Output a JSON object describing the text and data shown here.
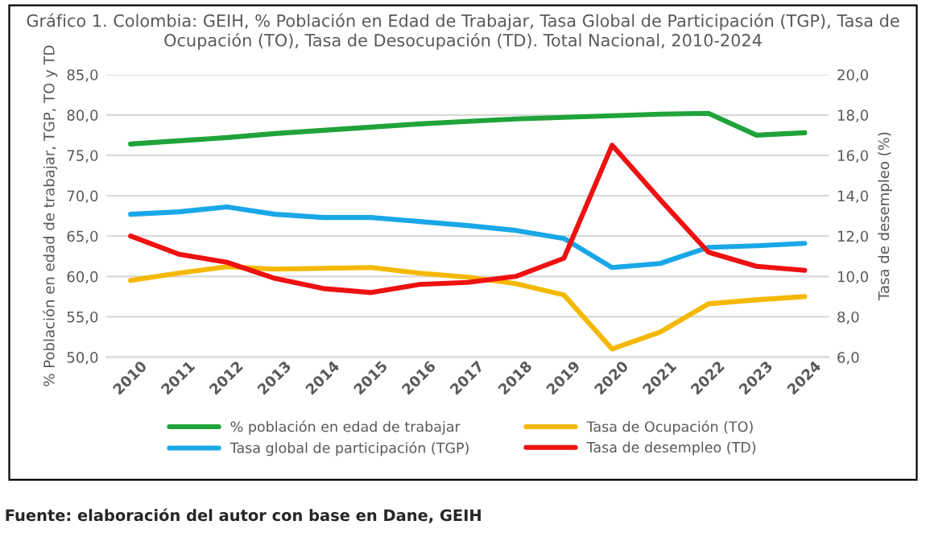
{
  "chart_data": {
    "type": "line",
    "title": "Gráfico 1. Colombia: GEIH, % Población en Edad de Trabajar, Tasa Global de Participación (TGP), Tasa de Ocupación (TO), Tasa de Desocupación (TD). Total Nacional, 2010-2024",
    "ylabel": "% Población en edad de trabajar, TGP, TO y TD",
    "y2label": "Tasa de desempleo (%)",
    "categories": [
      "2010",
      "2011",
      "2012",
      "2013",
      "2014",
      "2015",
      "2016",
      "2017",
      "2018",
      "2019",
      "2020",
      "2021",
      "2022",
      "2023",
      "2024"
    ],
    "series": [
      {
        "name": "% población en edad de trabajar",
        "color": "#1fa33a",
        "values": [
          76.4,
          76.8,
          77.2,
          77.7,
          78.1,
          78.5,
          78.9,
          79.2,
          79.5,
          79.7,
          79.9,
          80.1,
          80.2,
          77.5,
          77.8
        ]
      },
      {
        "name": "Tasa global de participación (TGP)",
        "color": "#1aa7e8",
        "values": [
          67.7,
          68.0,
          68.6,
          67.7,
          67.3,
          67.3,
          66.8,
          66.3,
          65.7,
          64.7,
          61.1,
          61.6,
          63.6,
          63.8,
          64.1
        ]
      },
      {
        "name": "Tasa de Ocupación (TO)",
        "color": "#f5b800",
        "values": [
          59.5,
          60.4,
          61.2,
          60.9,
          61.0,
          61.1,
          60.4,
          59.9,
          59.1,
          57.7,
          51.0,
          53.1,
          56.6,
          57.1,
          57.5
        ]
      },
      {
        "name": "Tasa de desempleo (TD)",
        "color": "#ee1111",
        "axis": "y2",
        "values": [
          12.0,
          11.1,
          10.7,
          9.9,
          9.4,
          9.2,
          9.6,
          9.7,
          10.0,
          10.9,
          16.5,
          13.8,
          11.2,
          10.5,
          10.3
        ]
      }
    ],
    "ylim": [
      50,
      85
    ],
    "yticks": [
      {
        "value": 50,
        "label": "50,0"
      },
      {
        "value": 55,
        "label": "55,0"
      },
      {
        "value": 60,
        "label": "60,0"
      },
      {
        "value": 65,
        "label": "65,0"
      },
      {
        "value": 70,
        "label": "70,0"
      },
      {
        "value": 75,
        "label": "75,0"
      },
      {
        "value": 80,
        "label": "80,0"
      },
      {
        "value": 85,
        "label": "85,0"
      }
    ],
    "y2lim": [
      6,
      20
    ],
    "y2ticks": [
      {
        "value": 6,
        "label": "6,0"
      },
      {
        "value": 8,
        "label": "8,0"
      },
      {
        "value": 10,
        "label": "10,0"
      },
      {
        "value": 12,
        "label": "12,0"
      },
      {
        "value": 14,
        "label": "14,0"
      },
      {
        "value": 16,
        "label": "16,0"
      },
      {
        "value": 18,
        "label": "18,0"
      },
      {
        "value": 20,
        "label": "20,0"
      }
    ],
    "grid": "y",
    "legend": "bottom",
    "marker": "none",
    "line_style": "solid",
    "annotations": [
      "Fuente: elaboración del autor con base en Dane, GEIH"
    ]
  }
}
